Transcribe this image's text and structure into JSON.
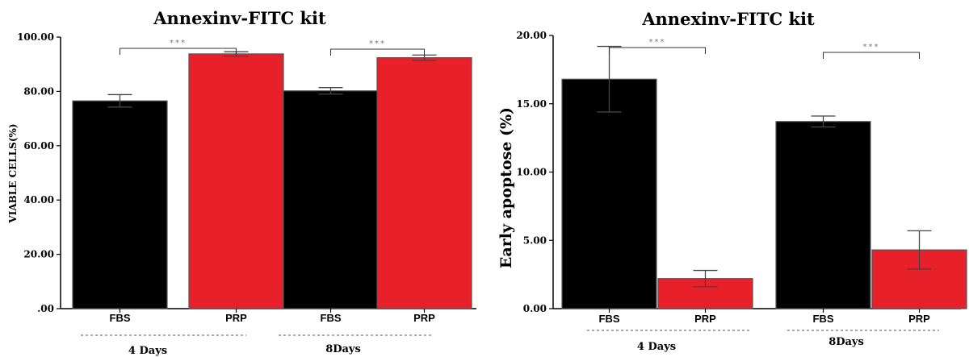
{
  "chart_data": [
    {
      "type": "bar",
      "title": "Annexinv-FITC kit",
      "ylabel": "VIABLE CELLS(%)",
      "xlabel": "",
      "ylim": [
        0,
        100
      ],
      "yticks": [
        ".00",
        "20.00",
        "40.00",
        "60.00",
        "80.00",
        "100.00"
      ],
      "ytick_values": [
        0,
        20,
        40,
        60,
        80,
        100
      ],
      "categories": [
        "FBS",
        "PRP",
        "FBS",
        "PRP"
      ],
      "groups": [
        {
          "label": "4 Days",
          "categories": [
            0,
            1
          ]
        },
        {
          "label": "8Days",
          "categories": [
            2,
            3
          ]
        }
      ],
      "values": [
        76.5,
        93.8,
        80.2,
        92.4
      ],
      "errors": [
        2.3,
        0.8,
        1.2,
        1.0
      ],
      "bar_colors": [
        "#000000",
        "#e8202a",
        "#000000",
        "#e8202a"
      ],
      "significance": [
        {
          "between": [
            0,
            1
          ],
          "label": "***"
        },
        {
          "between": [
            2,
            3
          ],
          "label": "***"
        }
      ]
    },
    {
      "type": "bar",
      "title": "Annexinv-FITC kit",
      "ylabel": "Early apoptose (%)",
      "xlabel": "",
      "ylim": [
        0,
        20
      ],
      "yticks": [
        "0.00",
        "5.00",
        "10.00",
        "15.00",
        "20.00"
      ],
      "ytick_values": [
        0,
        5,
        10,
        15,
        20
      ],
      "categories": [
        "FBS",
        "PRP",
        "FBS",
        "PRP"
      ],
      "groups": [
        {
          "label": "4 Days",
          "categories": [
            0,
            1
          ]
        },
        {
          "label": "8Days",
          "categories": [
            2,
            3
          ]
        }
      ],
      "values": [
        16.8,
        2.2,
        13.7,
        4.3
      ],
      "errors": [
        2.4,
        0.6,
        0.4,
        1.4
      ],
      "bar_colors": [
        "#000000",
        "#e8202a",
        "#000000",
        "#e8202a"
      ],
      "significance": [
        {
          "between": [
            0,
            1
          ],
          "label": "***"
        },
        {
          "between": [
            2,
            3
          ],
          "label": "***"
        }
      ]
    }
  ]
}
